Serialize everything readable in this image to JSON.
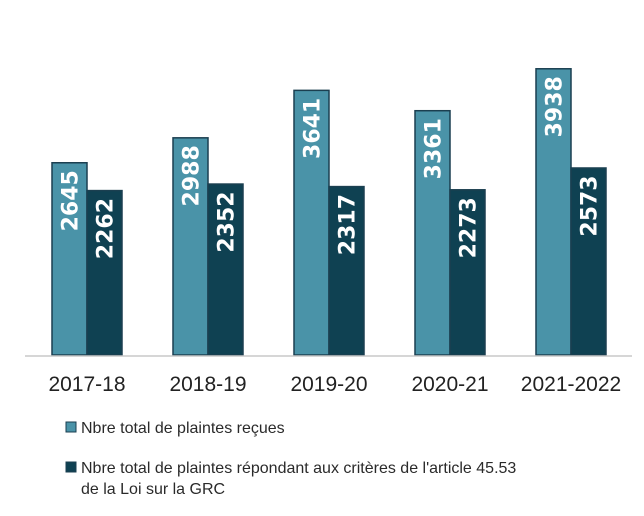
{
  "chart_data": {
    "type": "bar",
    "categories": [
      "2017-18",
      "2018-19",
      "2019-20",
      "2020-21",
      "2021-2022"
    ],
    "series": [
      {
        "name_lines": [
          "Nbre total de plaintes reçues"
        ],
        "values": [
          2645,
          2988,
          3641,
          3361,
          3938
        ],
        "color": "#4a93a8"
      },
      {
        "name_lines": [
          "Nbre total de plaintes répondant aux critères de l'article 45.53",
          "de la Loi sur la GRC"
        ],
        "values": [
          2262,
          2352,
          2317,
          2273,
          2573
        ],
        "color": "#0f4152"
      }
    ],
    "ylim": [
      0,
      4100
    ],
    "grid": false,
    "legend_position": "bottom-left",
    "axis_color": "#c8c8c8",
    "border_color": "#1b3f50"
  }
}
